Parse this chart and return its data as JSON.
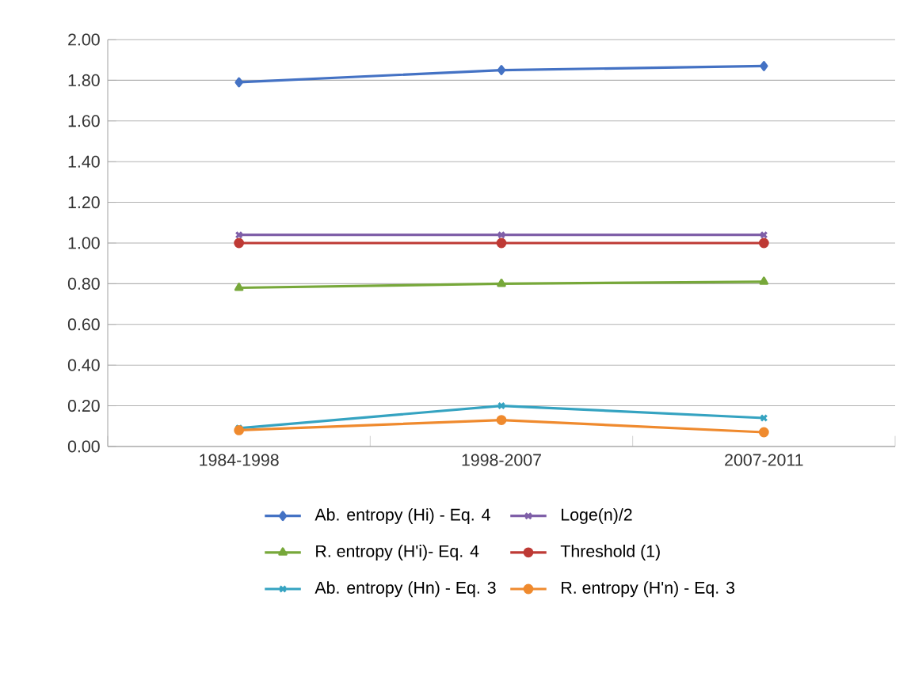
{
  "chart_data": {
    "type": "line",
    "categories": [
      "1984-1998",
      "1998-2007",
      "2007-2011"
    ],
    "series": [
      {
        "name": "Ab. entropy (Hi) - Eq. 4",
        "color": "#4472c4",
        "marker": "diamond",
        "values": [
          1.79,
          1.85,
          1.87
        ]
      },
      {
        "name": "Loge(n)/2",
        "color": "#7f5fa8",
        "marker": "cross",
        "values": [
          1.04,
          1.04,
          1.04
        ]
      },
      {
        "name": "R. entropy (H'i)- Eq. 4",
        "color": "#77a83a",
        "marker": "triangle",
        "values": [
          0.78,
          0.8,
          0.81
        ]
      },
      {
        "name": "Threshold (1)",
        "color": "#be3a35",
        "marker": "circle",
        "values": [
          1.0,
          1.0,
          1.0
        ]
      },
      {
        "name": "Ab. entropy (Hn) - Eq. 3",
        "color": "#35a3c1",
        "marker": "cross",
        "values": [
          0.09,
          0.2,
          0.14
        ]
      },
      {
        "name": "R. entropy (H'n) - Eq. 3",
        "color": "#ef8a2e",
        "marker": "circle",
        "values": [
          0.08,
          0.13,
          0.07
        ]
      }
    ],
    "ylim": [
      0,
      2
    ],
    "yticks": [
      {
        "value": 0,
        "label": "0.00"
      },
      {
        "value": 0.2,
        "label": "0.20"
      },
      {
        "value": 0.4,
        "label": "0.40"
      },
      {
        "value": 0.6,
        "label": "0.60"
      },
      {
        "value": 0.8,
        "label": "0.80"
      },
      {
        "value": 1,
        "label": "1.00"
      },
      {
        "value": 1.2,
        "label": "1.20"
      },
      {
        "value": 1.4,
        "label": "1.40"
      },
      {
        "value": 1.6,
        "label": "1.60"
      },
      {
        "value": 1.8,
        "label": "1.80"
      },
      {
        "value": 2,
        "label": "2.00"
      }
    ],
    "grid": "y",
    "legend": "bottom",
    "line_style": "solid"
  }
}
